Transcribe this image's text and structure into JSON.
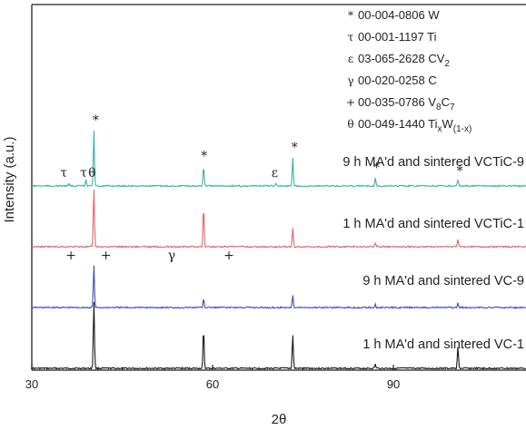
{
  "chart_data": {
    "type": "line",
    "xlabel": "2θ",
    "ylabel": "Intensity (a.u.)",
    "xlim": [
      30,
      112
    ],
    "x_ticks": [
      "30",
      "60",
      "90"
    ],
    "grid": false,
    "legend_position": "top-right",
    "legend": [
      {
        "symbol": "*",
        "code": "00-004-0806",
        "phase": "W"
      },
      {
        "symbol": "τ",
        "code": "00-001-1197",
        "phase": "Ti"
      },
      {
        "symbol": "ε",
        "code": "03-065-2628",
        "phase": "CV",
        "sub": "2"
      },
      {
        "symbol": "γ",
        "code": "00-020-0258",
        "phase": "C"
      },
      {
        "symbol": "+",
        "code": "00-035-0786",
        "phase": "V",
        "sub": "8",
        "phase2": "C",
        "sub2": "7"
      },
      {
        "symbol": "θ",
        "code": "00-049-1440",
        "phase": "Ti",
        "sub": "x",
        "phase2": "W",
        "sub2": "(1-x)"
      }
    ],
    "series": [
      {
        "name": "1 h MA'd and sintered VC-1",
        "color": "#1a1a1a",
        "peaks": [
          [
            40.3,
            1.0
          ],
          [
            58.5,
            0.58
          ],
          [
            73.3,
            0.5
          ],
          [
            87.0,
            0.06
          ],
          [
            100.7,
            0.32
          ]
        ]
      },
      {
        "name": "9 h MA'd and sintered VC-9",
        "color": "#4a4ab4",
        "peaks": [
          [
            40.3,
            1.0
          ],
          [
            58.5,
            0.22
          ],
          [
            73.3,
            0.3
          ],
          [
            87.0,
            0.07
          ],
          [
            100.7,
            0.1
          ]
        ]
      },
      {
        "name": "1 h MA'd and sintered VCTiC-1",
        "color": "#e06767",
        "peaks": [
          [
            40.3,
            1.0
          ],
          [
            58.5,
            0.68
          ],
          [
            73.3,
            0.33
          ],
          [
            87.0,
            0.07
          ],
          [
            100.7,
            0.13
          ]
        ]
      },
      {
        "name": "9 h MA'd and sintered VCTiC-9",
        "color": "#3ab3a8",
        "peaks": [
          [
            36.2,
            0.04
          ],
          [
            39.0,
            0.12
          ],
          [
            40.3,
            1.0
          ],
          [
            58.5,
            0.36
          ],
          [
            70.5,
            0.05
          ],
          [
            73.3,
            0.52
          ],
          [
            87.0,
            0.15
          ],
          [
            100.7,
            0.1
          ]
        ]
      }
    ],
    "annotations": [
      {
        "series": 3,
        "x": 40.6,
        "text": "*"
      },
      {
        "series": 3,
        "x": 58.6,
        "text": "*"
      },
      {
        "series": 3,
        "x": 73.6,
        "text": "*"
      },
      {
        "series": 3,
        "x": 87.2,
        "text": "*"
      },
      {
        "series": 3,
        "x": 101.0,
        "text": "*"
      },
      {
        "series": 3,
        "x": 35.3,
        "text": "τ"
      },
      {
        "series": 3,
        "x": 38.6,
        "text": "τ"
      },
      {
        "series": 3,
        "x": 40.0,
        "text": "θ"
      },
      {
        "series": 3,
        "x": 70.3,
        "text": "ε"
      },
      {
        "series": 2,
        "x": 36.5,
        "text": "+"
      },
      {
        "series": 2,
        "x": 42.3,
        "text": "+"
      },
      {
        "series": 2,
        "x": 53.2,
        "text": "γ"
      },
      {
        "series": 2,
        "x": 62.7,
        "text": "+"
      }
    ]
  }
}
